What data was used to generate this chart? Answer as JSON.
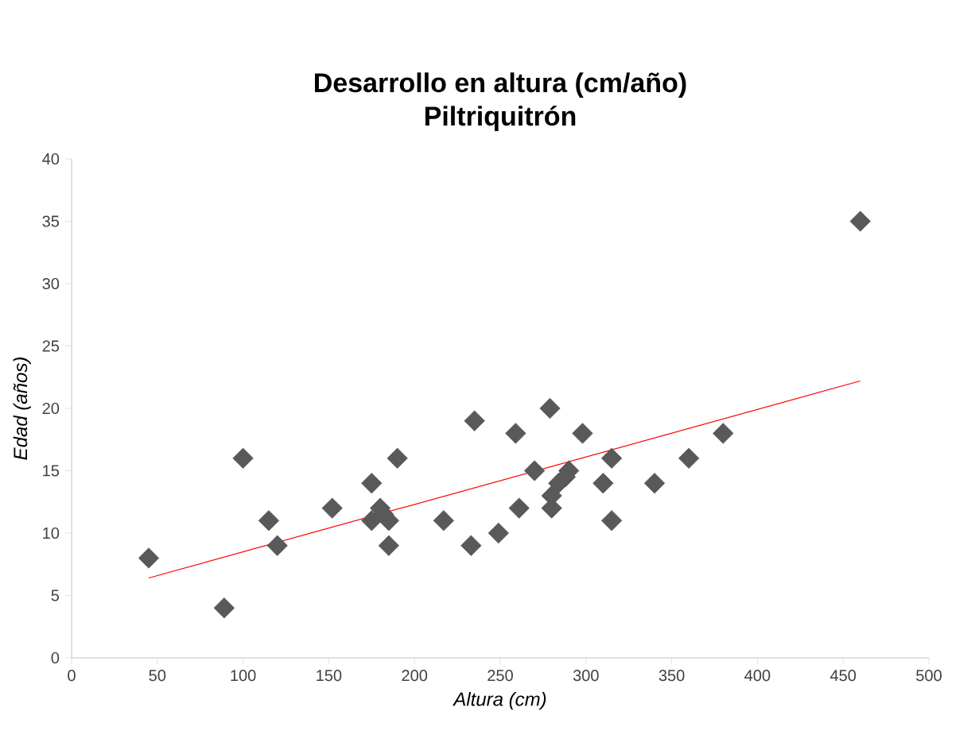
{
  "chart_data": {
    "type": "scatter",
    "title": "Desarrollo en altura (cm/año)",
    "subtitle": "Piltriquitrón",
    "xlabel": "Altura (cm)",
    "ylabel": "Edad (años)",
    "marker": "diamond",
    "xlim": [
      0,
      500
    ],
    "ylim": [
      0,
      40
    ],
    "xticks": [
      0,
      50,
      100,
      150,
      200,
      250,
      300,
      350,
      400,
      450,
      500
    ],
    "yticks": [
      0,
      5,
      10,
      15,
      20,
      25,
      30,
      35,
      40
    ],
    "series": [
      {
        "color": "#595959",
        "x": [
          45,
          89,
          100,
          115,
          120,
          152,
          175,
          175,
          180,
          182,
          185,
          185,
          190,
          217,
          233,
          235,
          249,
          259,
          261,
          270,
          279,
          280,
          280,
          284,
          288,
          290,
          298,
          310,
          315,
          315,
          340,
          360,
          380,
          460
        ],
        "values": [
          8,
          4,
          16,
          11,
          9,
          12,
          14,
          11,
          12,
          11.5,
          11,
          9,
          16,
          11,
          9,
          19,
          10,
          18,
          12,
          15,
          20,
          12,
          13,
          14,
          14.5,
          15,
          18,
          14,
          16,
          11,
          14,
          16,
          18,
          35
        ]
      },
      {
        "type": "line",
        "color": "#ff0000",
        "marker": "none",
        "x": [
          45,
          460
        ],
        "values": [
          6.4,
          22.2
        ]
      }
    ]
  }
}
